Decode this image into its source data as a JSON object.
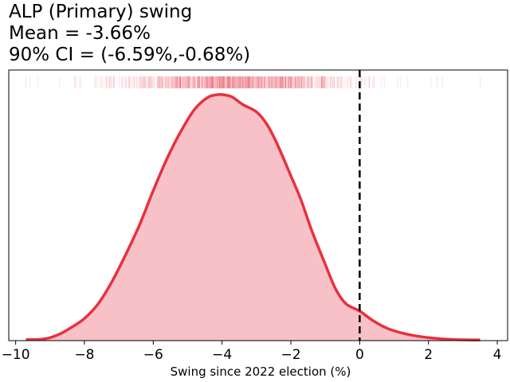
{
  "chart_data": {
    "type": "area",
    "title_lines": [
      "ALP (Primary) swing",
      "Mean = -3.66%",
      "90% CI = (-6.59%,-0.68%)"
    ],
    "xlabel": "Swing since 2022 election (%)",
    "ylabel": "",
    "xlim": [
      -10.2,
      4.3
    ],
    "ylim": [
      0,
      1.1
    ],
    "x_ticks": [
      -10,
      -8,
      -6,
      -4,
      -2,
      0,
      2,
      4
    ],
    "x_tick_labels": [
      "−10",
      "−8",
      "−6",
      "−4",
      "−2",
      "0",
      "2",
      "4"
    ],
    "y_ticks_shown": false,
    "grid": false,
    "reference_line_x": 0,
    "line_color": "#e6323e",
    "fill_color": "#f8c1c7",
    "rug_color": "#e6323e",
    "density": {
      "x": [
        -9.7,
        -9.3,
        -9.0,
        -8.7,
        -8.4,
        -8.0,
        -7.6,
        -7.2,
        -6.8,
        -6.4,
        -6.0,
        -5.6,
        -5.2,
        -4.8,
        -4.4,
        -4.1,
        -3.9,
        -3.7,
        -3.4,
        -3.0,
        -2.7,
        -2.4,
        -2.0,
        -1.7,
        -1.4,
        -1.0,
        -0.7,
        -0.4,
        0.0,
        0.4,
        0.8,
        1.2,
        1.6,
        2.0,
        2.4,
        2.8,
        3.2,
        3.5
      ],
      "y": [
        0.004,
        0.005,
        0.012,
        0.028,
        0.052,
        0.09,
        0.15,
        0.24,
        0.35,
        0.47,
        0.61,
        0.74,
        0.85,
        0.94,
        0.99,
        1.0,
        0.998,
        0.99,
        0.96,
        0.93,
        0.88,
        0.8,
        0.67,
        0.57,
        0.45,
        0.31,
        0.21,
        0.15,
        0.12,
        0.08,
        0.05,
        0.032,
        0.02,
        0.012,
        0.007,
        0.004,
        0.003,
        0.003
      ]
    }
  }
}
